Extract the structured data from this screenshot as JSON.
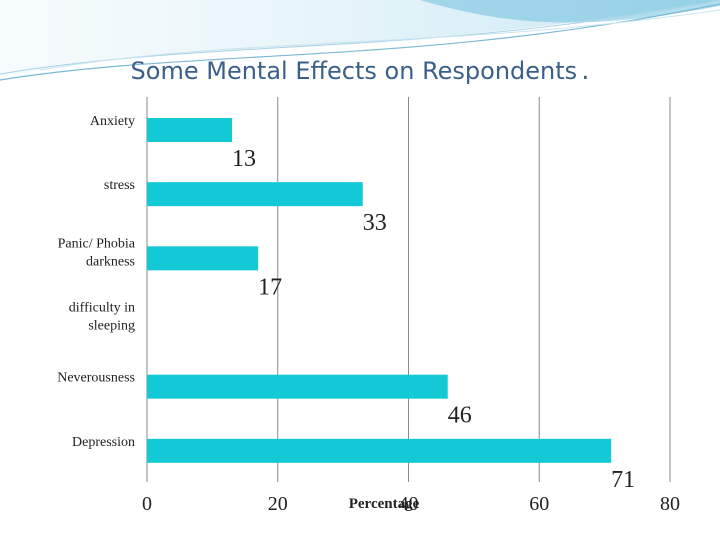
{
  "slide": {
    "title": "Some Mental Effects on Respondents",
    "title_dot": "."
  },
  "chart_data": {
    "type": "bar",
    "orientation": "horizontal",
    "title": "Some Mental Effects on Respondents",
    "categories": [
      "Anxiety",
      "stress",
      "Panic/ Phobia darkness",
      "difficulty in sleeping",
      "Neverousness",
      "Depression"
    ],
    "category_lines": [
      [
        "Anxiety"
      ],
      [
        "stress"
      ],
      [
        "Panic/ Phobia",
        "darkness"
      ],
      [
        "difficulty in",
        "sleeping"
      ],
      [
        "Neverousness"
      ],
      [
        "Depression"
      ]
    ],
    "values": [
      13,
      33,
      17,
      null,
      46,
      71
    ],
    "data_labels": [
      "13",
      "33",
      "17",
      "",
      "46",
      "71"
    ],
    "xlabel": "Percentage",
    "xlim": [
      0,
      80
    ],
    "xticks": [
      0,
      20,
      40,
      60,
      80
    ],
    "grid": "vertical",
    "bar_color": "#13c9d6"
  }
}
